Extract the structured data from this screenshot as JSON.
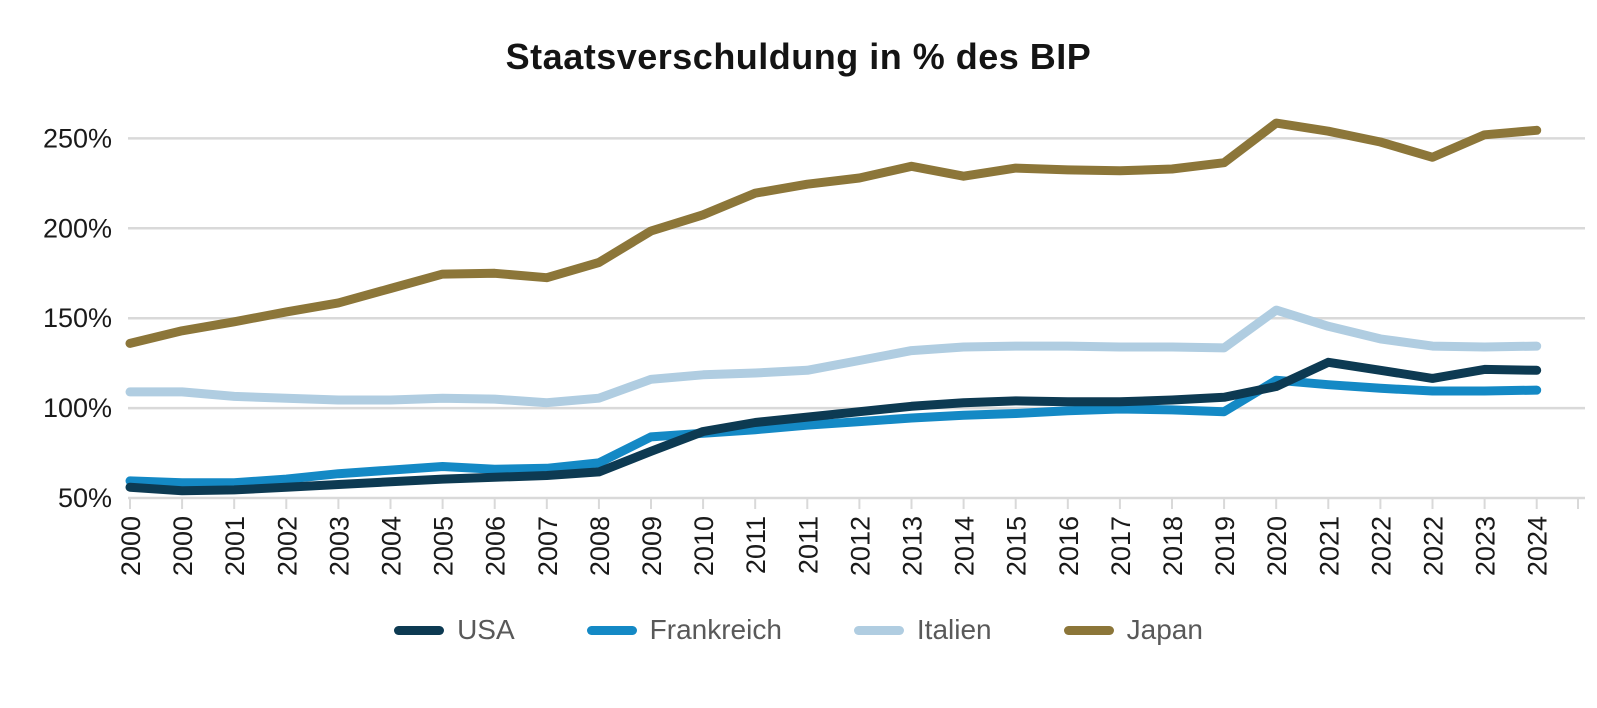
{
  "title": "Staatsverschuldung in % des BIP",
  "chart_data": {
    "type": "line",
    "title": "Staatsverschuldung in % des BIP",
    "grid": true,
    "legend_position": "bottom",
    "ylim": [
      50,
      272
    ],
    "y_ticks": [
      {
        "value": 50,
        "label": "50%"
      },
      {
        "value": 100,
        "label": "100%"
      },
      {
        "value": 150,
        "label": "150%"
      },
      {
        "value": 200,
        "label": "200%"
      },
      {
        "value": 250,
        "label": "250%"
      }
    ],
    "x_labels": [
      "2000",
      "2000",
      "2001",
      "2002",
      "2003",
      "2004",
      "2005",
      "2006",
      "2007",
      "2008",
      "2009",
      "2010",
      "2011",
      "2011",
      "2012",
      "2013",
      "2014",
      "2015",
      "2016",
      "2017",
      "2018",
      "2019",
      "2020",
      "2021",
      "2022",
      "2022",
      "2023",
      "2024"
    ],
    "series": [
      {
        "name": "USA",
        "color": "#0d3a52",
        "values": [
          56,
          54,
          54.5,
          56,
          57.5,
          59,
          60.5,
          61.5,
          62.5,
          64.5,
          76,
          87,
          92,
          95,
          98,
          101,
          103,
          104,
          103.5,
          103.5,
          104.5,
          106,
          112,
          125.5,
          121,
          116.5,
          121.5,
          121
        ]
      },
      {
        "name": "Frankreich",
        "color": "#1489c5",
        "values": [
          59.5,
          58.5,
          58.5,
          60.5,
          63.5,
          65.5,
          67.5,
          66,
          66.5,
          69.5,
          84,
          86,
          88,
          90.5,
          92.5,
          94.5,
          96,
          97,
          98.5,
          99.5,
          99,
          98,
          115.5,
          113,
          111,
          109.5,
          109.5,
          110
        ]
      },
      {
        "name": "Italien",
        "color": "#b0cde1",
        "values": [
          109,
          109,
          106.5,
          105.5,
          104.5,
          104.5,
          105.5,
          105,
          103,
          105.5,
          116,
          118.5,
          119.5,
          121,
          126.5,
          132,
          134,
          134.5,
          134.5,
          134,
          134,
          133.5,
          154.5,
          145.5,
          138.5,
          134.5,
          134,
          134.5
        ]
      },
      {
        "name": "Japan",
        "color": "#8c7639",
        "values": [
          136,
          143,
          148,
          153.5,
          158.5,
          166.5,
          174.5,
          175,
          172.5,
          181,
          198.5,
          207.5,
          219.5,
          224.5,
          228,
          234.5,
          229,
          233.5,
          232.5,
          232,
          233,
          236.5,
          258.5,
          254,
          248,
          239.5,
          252,
          254.5
        ]
      }
    ],
    "colors": {
      "grid": "#d9d9d9",
      "axis_label": "#1a1a1a",
      "legend_label": "#595959",
      "background": "#ffffff"
    }
  }
}
